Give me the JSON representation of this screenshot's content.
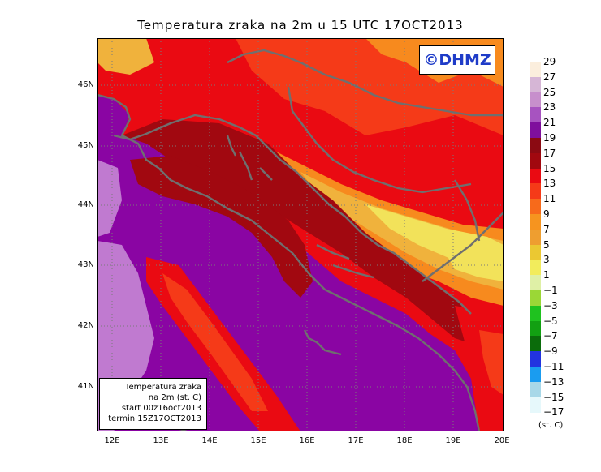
{
  "title": "Temperatura zraka na 2m u 15 UTC 17OCT2013",
  "brand": "©DHMZ",
  "info_box": {
    "line1": "Temperatura zraka",
    "line2": "na 2m (st. C)",
    "line3": "start 00z16oct2013",
    "line4": "termin 15Z17OCT2013"
  },
  "axes": {
    "lat_ticks": [
      "46N",
      "45N",
      "44N",
      "43N",
      "42N",
      "41N"
    ],
    "lon_ticks": [
      "12E",
      "13E",
      "14E",
      "15E",
      "16E",
      "17E",
      "18E",
      "19E",
      "20E"
    ]
  },
  "legend": {
    "units": "(st. C)",
    "labels": [
      "29",
      "27",
      "25",
      "23",
      "21",
      "19",
      "17",
      "15",
      "13",
      "11",
      "9",
      "7",
      "5",
      "3",
      "1",
      "−1",
      "−3",
      "−5",
      "−7",
      "−9",
      "−11",
      "−13",
      "−15",
      "−17"
    ],
    "colors": [
      "#fbeedd",
      "#d6b6d6",
      "#c78fcc",
      "#a753c0",
      "#7f0f9d",
      "#8b0a12",
      "#a1080f",
      "#ea0a12",
      "#f53a18",
      "#f76a1b",
      "#f6941f",
      "#ee9e30",
      "#ebc832",
      "#f2ec5c",
      "#dff0a6",
      "#9bd736",
      "#1fc21f",
      "#12a012",
      "#0b6c0b",
      "#2233e0",
      "#1a9cf0",
      "#a8d8e8",
      "#e6f8fb"
    ]
  },
  "colors": {
    "sea_purple": "#8a05a3",
    "lavender": "#c07ad0",
    "dark_red": "#a10810",
    "red": "#ea0a12",
    "orange_red": "#f53a18",
    "orange": "#f78a1e",
    "yellow_orange": "#f0b23c",
    "yellow": "#f2e25a",
    "border_gray": "#6f6f6f",
    "grid_gray": "#7a7a7a"
  }
}
